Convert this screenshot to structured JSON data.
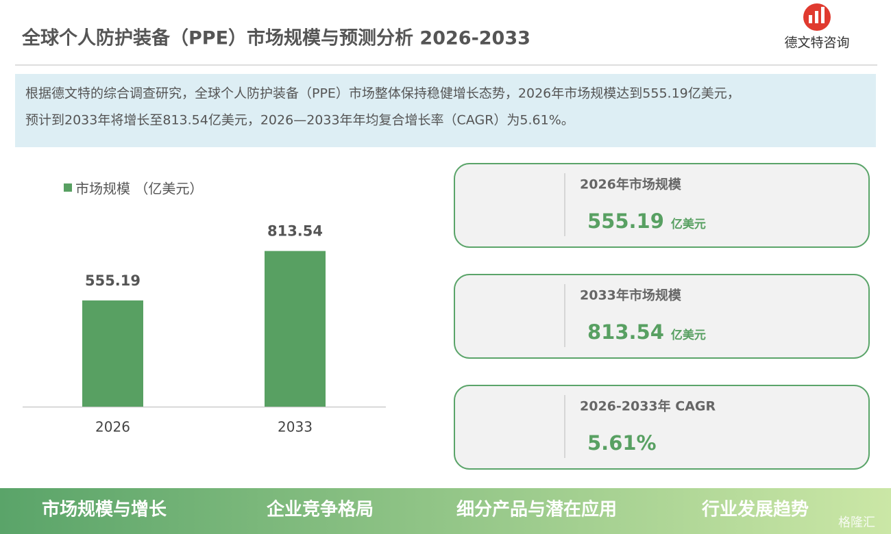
{
  "header": {
    "title": "全球个人防护装备（PPE）市场规模与预测分析 2026-2033",
    "logo_text": "德文特咨询"
  },
  "summary": {
    "lines": [
      "根据德文特的综合调查研究，全球个人防护装备（PPE）市场整体保持稳健增长态势，2026年市场规模达到555.19亿美元，",
      "预计到2033年将增长至813.54亿美元，2026—2033年年均复合增长率（CAGR）为5.61%。"
    ]
  },
  "chart_data": {
    "type": "bar",
    "categories": [
      "2026",
      "2033"
    ],
    "series": [
      {
        "name": "市场规模 （亿美元）",
        "color": "#58a062",
        "values": [
          555.19,
          813.54
        ]
      }
    ]
  },
  "cards": [
    {
      "title": "2026年市场规模",
      "value": "555.19",
      "unit": "亿美元"
    },
    {
      "title": "2033年市场规模",
      "value": "813.54",
      "unit": "亿美元"
    },
    {
      "title": "2026-2033年 CAGR",
      "value": "5.61%"
    }
  ],
  "footer": {
    "tabs": [
      "市场规模与增长",
      "企业竞争格局",
      "细分产品与潜在应用",
      "行业发展趋势"
    ],
    "watermark": "格隆汇"
  }
}
